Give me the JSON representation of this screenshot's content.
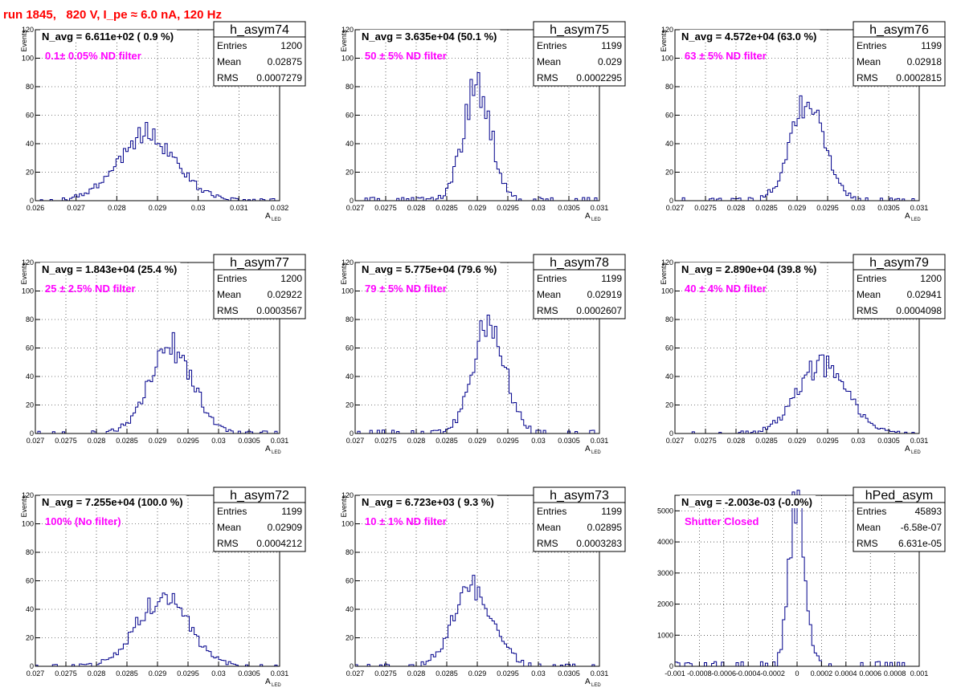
{
  "run_title": "run 1845,   820 V, I_pe ≈ 6.0 nA, 120 Hz",
  "chart_data": [
    {
      "type": "bar",
      "hist_name": "h_asym74",
      "navg": "N_avg = 6.611e+02 ( 0.9 %)",
      "annotation": "0.1± 0.05% ND filter",
      "stats": {
        "Entries": "1200",
        "Mean": "0.02875",
        "RMS": "0.0007279"
      },
      "ylabel": "Events",
      "xlabel_main": "A",
      "xlabel_sub": "LED",
      "xlim": [
        0.026,
        0.032
      ],
      "ylim": [
        0,
        120
      ],
      "xticks": [
        {
          "v": 0.026,
          "l": "0.026"
        },
        {
          "v": 0.027,
          "l": "0.027"
        },
        {
          "v": 0.028,
          "l": "0.028"
        },
        {
          "v": 0.029,
          "l": "0.029"
        },
        {
          "v": 0.03,
          "l": "0.03"
        },
        {
          "v": 0.031,
          "l": "0.031"
        },
        {
          "v": 0.032,
          "l": "0.032"
        }
      ],
      "yticks": [
        0,
        20,
        40,
        60,
        80,
        100,
        120
      ],
      "grid": true,
      "mean": 0.02875,
      "sigma": 0.0007279,
      "peak": 46
    },
    {
      "type": "bar",
      "hist_name": "h_asym75",
      "navg": "N_avg = 3.635e+04 (50.1 %)",
      "annotation": "50 ± 5% ND filter",
      "stats": {
        "Entries": "1199",
        "Mean": "0.029",
        "RMS": "0.0002295"
      },
      "ylabel": "Events",
      "xlabel_main": "A",
      "xlabel_sub": "LED",
      "xlim": [
        0.027,
        0.031
      ],
      "ylim": [
        0,
        120
      ],
      "xticks": [
        {
          "v": 0.027,
          "l": "0.027"
        },
        {
          "v": 0.0275,
          "l": "0.0275"
        },
        {
          "v": 0.028,
          "l": "0.028"
        },
        {
          "v": 0.0285,
          "l": "0.0285"
        },
        {
          "v": 0.029,
          "l": "0.029"
        },
        {
          "v": 0.0295,
          "l": "0.0295"
        },
        {
          "v": 0.03,
          "l": "0.03"
        },
        {
          "v": 0.0305,
          "l": "0.0305"
        },
        {
          "v": 0.031,
          "l": "0.031"
        }
      ],
      "yticks": [
        0,
        20,
        40,
        60,
        80,
        100,
        120
      ],
      "grid": true,
      "mean": 0.029,
      "sigma": 0.0002295,
      "peak": 79
    },
    {
      "type": "bar",
      "hist_name": "h_asym76",
      "navg": "N_avg = 4.572e+04 (63.0 %)",
      "annotation": "63 ± 5% ND filter",
      "stats": {
        "Entries": "1199",
        "Mean": "0.02918",
        "RMS": "0.0002815"
      },
      "ylabel": "Events",
      "xlabel_main": "A",
      "xlabel_sub": "LED",
      "xlim": [
        0.027,
        0.031
      ],
      "ylim": [
        0,
        120
      ],
      "xticks": [
        {
          "v": 0.027,
          "l": "0.027"
        },
        {
          "v": 0.0275,
          "l": "0.0275"
        },
        {
          "v": 0.028,
          "l": "0.028"
        },
        {
          "v": 0.0285,
          "l": "0.0285"
        },
        {
          "v": 0.029,
          "l": "0.029"
        },
        {
          "v": 0.0295,
          "l": "0.0295"
        },
        {
          "v": 0.03,
          "l": "0.03"
        },
        {
          "v": 0.0305,
          "l": "0.0305"
        },
        {
          "v": 0.031,
          "l": "0.031"
        }
      ],
      "yticks": [
        0,
        20,
        40,
        60,
        80,
        100,
        120
      ],
      "grid": true,
      "mean": 0.02918,
      "sigma": 0.0002815,
      "peak": 70
    },
    {
      "type": "bar",
      "hist_name": "h_asym77",
      "navg": "N_avg = 1.843e+04 (25.4 %)",
      "annotation": "25 ± 2.5% ND filter",
      "stats": {
        "Entries": "1200",
        "Mean": "0.02922",
        "RMS": "0.0003567"
      },
      "ylabel": "Events",
      "xlabel_main": "A",
      "xlabel_sub": "LED",
      "xlim": [
        0.027,
        0.031
      ],
      "ylim": [
        0,
        120
      ],
      "xticks": [
        {
          "v": 0.027,
          "l": "0.027"
        },
        {
          "v": 0.0275,
          "l": "0.0275"
        },
        {
          "v": 0.028,
          "l": "0.028"
        },
        {
          "v": 0.0285,
          "l": "0.0285"
        },
        {
          "v": 0.029,
          "l": "0.029"
        },
        {
          "v": 0.0295,
          "l": "0.0295"
        },
        {
          "v": 0.03,
          "l": "0.03"
        },
        {
          "v": 0.0305,
          "l": "0.0305"
        },
        {
          "v": 0.031,
          "l": "0.031"
        }
      ],
      "yticks": [
        0,
        20,
        40,
        60,
        80,
        100,
        120
      ],
      "grid": true,
      "mean": 0.02922,
      "sigma": 0.0003567,
      "peak": 60
    },
    {
      "type": "bar",
      "hist_name": "h_asym78",
      "navg": "N_avg = 5.775e+04 (79.6 %)",
      "annotation": "79 ± 5% ND filter",
      "stats": {
        "Entries": "1199",
        "Mean": "0.02919",
        "RMS": "0.0002607"
      },
      "ylabel": "Events",
      "xlabel_main": "A",
      "xlabel_sub": "LED",
      "xlim": [
        0.027,
        0.031
      ],
      "ylim": [
        0,
        120
      ],
      "xticks": [
        {
          "v": 0.027,
          "l": "0.027"
        },
        {
          "v": 0.0275,
          "l": "0.0275"
        },
        {
          "v": 0.028,
          "l": "0.028"
        },
        {
          "v": 0.0285,
          "l": "0.0285"
        },
        {
          "v": 0.029,
          "l": "0.029"
        },
        {
          "v": 0.0295,
          "l": "0.0295"
        },
        {
          "v": 0.03,
          "l": "0.03"
        },
        {
          "v": 0.0305,
          "l": "0.0305"
        },
        {
          "v": 0.031,
          "l": "0.031"
        }
      ],
      "yticks": [
        0,
        20,
        40,
        60,
        80,
        100,
        120
      ],
      "grid": true,
      "mean": 0.02919,
      "sigma": 0.0002607,
      "peak": 80
    },
    {
      "type": "bar",
      "hist_name": "h_asym79",
      "navg": "N_avg = 2.890e+04 (39.8 %)",
      "annotation": "40 ± 4% ND filter",
      "stats": {
        "Entries": "1200",
        "Mean": "0.02941",
        "RMS": "0.0004098"
      },
      "ylabel": "Events",
      "xlabel_main": "A",
      "xlabel_sub": "LED",
      "xlim": [
        0.027,
        0.031
      ],
      "ylim": [
        0,
        120
      ],
      "xticks": [
        {
          "v": 0.027,
          "l": "0.027"
        },
        {
          "v": 0.0275,
          "l": "0.0275"
        },
        {
          "v": 0.028,
          "l": "0.028"
        },
        {
          "v": 0.0285,
          "l": "0.0285"
        },
        {
          "v": 0.029,
          "l": "0.029"
        },
        {
          "v": 0.0295,
          "l": "0.0295"
        },
        {
          "v": 0.03,
          "l": "0.03"
        },
        {
          "v": 0.0305,
          "l": "0.0305"
        },
        {
          "v": 0.031,
          "l": "0.031"
        }
      ],
      "yticks": [
        0,
        20,
        40,
        60,
        80,
        100,
        120
      ],
      "grid": true,
      "mean": 0.02941,
      "sigma": 0.0004098,
      "peak": 48
    },
    {
      "type": "bar",
      "hist_name": "h_asym72",
      "navg": "N_avg = 7.255e+04 (100.0 %)",
      "annotation": "100% (No filter)",
      "stats": {
        "Entries": "1199",
        "Mean": "0.02909",
        "RMS": "0.0004212"
      },
      "ylabel": "Events",
      "xlabel_main": "A",
      "xlabel_sub": "LED",
      "xlim": [
        0.027,
        0.031
      ],
      "ylim": [
        0,
        120
      ],
      "xticks": [
        {
          "v": 0.027,
          "l": "0.027"
        },
        {
          "v": 0.0275,
          "l": "0.0275"
        },
        {
          "v": 0.028,
          "l": "0.028"
        },
        {
          "v": 0.0285,
          "l": "0.0285"
        },
        {
          "v": 0.029,
          "l": "0.029"
        },
        {
          "v": 0.0295,
          "l": "0.0295"
        },
        {
          "v": 0.03,
          "l": "0.03"
        },
        {
          "v": 0.0305,
          "l": "0.0305"
        },
        {
          "v": 0.031,
          "l": "0.031"
        }
      ],
      "yticks": [
        0,
        20,
        40,
        60,
        80,
        100,
        120
      ],
      "grid": true,
      "mean": 0.02909,
      "sigma": 0.0004212,
      "peak": 50
    },
    {
      "type": "bar",
      "hist_name": "h_asym73",
      "navg": "N_avg = 6.723e+03 ( 9.3 %)",
      "annotation": "10 ± 1% ND filter",
      "stats": {
        "Entries": "1199",
        "Mean": "0.02895",
        "RMS": "0.0003283"
      },
      "ylabel": "Events",
      "xlabel_main": "A",
      "xlabel_sub": "LED",
      "xlim": [
        0.027,
        0.031
      ],
      "ylim": [
        0,
        120
      ],
      "xticks": [
        {
          "v": 0.027,
          "l": "0.027"
        },
        {
          "v": 0.0275,
          "l": "0.0275"
        },
        {
          "v": 0.028,
          "l": "0.028"
        },
        {
          "v": 0.0285,
          "l": "0.0285"
        },
        {
          "v": 0.029,
          "l": "0.029"
        },
        {
          "v": 0.0295,
          "l": "0.0295"
        },
        {
          "v": 0.03,
          "l": "0.03"
        },
        {
          "v": 0.0305,
          "l": "0.0305"
        },
        {
          "v": 0.031,
          "l": "0.031"
        }
      ],
      "yticks": [
        0,
        20,
        40,
        60,
        80,
        100,
        120
      ],
      "grid": true,
      "mean": 0.02895,
      "sigma": 0.0003283,
      "peak": 56
    },
    {
      "type": "bar",
      "hist_name": "hPed_asym",
      "navg": "N_avg = -2.003e-03 (-0.0%)",
      "annotation": "Shutter Closed",
      "stats": {
        "Entries": "45893",
        "Mean": "-6.58e-07",
        "RMS": "6.631e-05"
      },
      "ylabel": "",
      "xlabel_main": "",
      "xlabel_sub": "",
      "xlim": [
        -0.001,
        0.001
      ],
      "ylim": [
        0,
        5500
      ],
      "xticks": [
        {
          "v": -0.001,
          "l": "-0.001"
        },
        {
          "v": -0.0008,
          "l": "-0.0008"
        },
        {
          "v": -0.0006,
          "l": "-0.0006"
        },
        {
          "v": -0.0004,
          "l": "-0.0004"
        },
        {
          "v": -0.0002,
          "l": "-0.0002"
        },
        {
          "v": 0,
          "l": "0"
        },
        {
          "v": 0.0002,
          "l": "0.0002"
        },
        {
          "v": 0.0004,
          "l": "0.0004"
        },
        {
          "v": 0.0006,
          "l": "0.0006"
        },
        {
          "v": 0.0008,
          "l": "0.0008"
        },
        {
          "v": 0.001,
          "l": "0.001"
        }
      ],
      "yticks": [
        0,
        1000,
        2000,
        3000,
        4000,
        5000
      ],
      "grid": true,
      "mean": 0.0,
      "sigma": 6.631e-05,
      "peak": 5300
    }
  ]
}
